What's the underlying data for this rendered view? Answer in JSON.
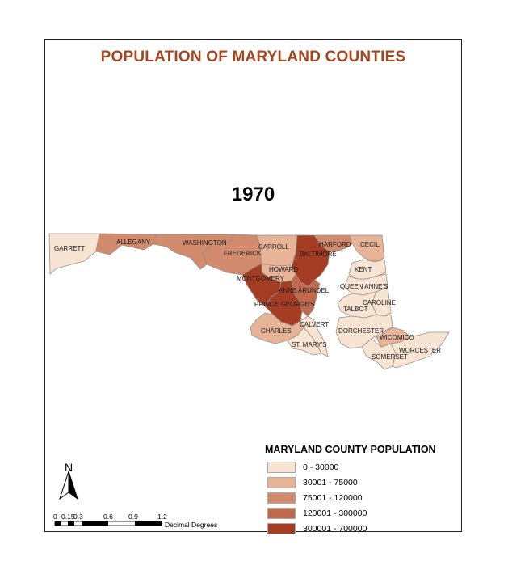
{
  "title": "POPULATION OF MARYLAND COUNTIES",
  "year": "1970",
  "colors": {
    "title": "#a8451f",
    "class_1": "#f7e4d2",
    "class_2": "#e8b498",
    "class_3": "#d38b6d",
    "class_4": "#c06a4d",
    "class_5": "#a53d24"
  },
  "counties": [
    {
      "name": "GARRETT",
      "class": 1
    },
    {
      "name": "ALLEGANY",
      "class": 3
    },
    {
      "name": "WASHINGTON",
      "class": 3
    },
    {
      "name": "FREDERICK",
      "class": 3
    },
    {
      "name": "CARROLL",
      "class": 2
    },
    {
      "name": "BALTIMORE",
      "class": 5
    },
    {
      "name": "HARFORD",
      "class": 3
    },
    {
      "name": "CECIL",
      "class": 2
    },
    {
      "name": "HOWARD",
      "class": 2
    },
    {
      "name": "MONTGOMERY",
      "class": 5
    },
    {
      "name": "ANNE ARUNDEL",
      "class": 4
    },
    {
      "name": "PRINCE GEORGE'S",
      "class": 5
    },
    {
      "name": "CALVERT",
      "class": 1
    },
    {
      "name": "CHARLES",
      "class": 2
    },
    {
      "name": "ST. MARY'S",
      "class": 1
    },
    {
      "name": "KENT",
      "class": 1
    },
    {
      "name": "QUEEN ANNE'S",
      "class": 1
    },
    {
      "name": "CAROLINE",
      "class": 1
    },
    {
      "name": "TALBOT",
      "class": 1
    },
    {
      "name": "DORCHESTER",
      "class": 1
    },
    {
      "name": "WICOMICO",
      "class": 2
    },
    {
      "name": "SOMERSET",
      "class": 1
    },
    {
      "name": "WORCESTER",
      "class": 1
    }
  ],
  "legend": {
    "title": "MARYLAND COUNTY POPULATION",
    "items": [
      {
        "label": "0 - 30000",
        "color": "#f7e4d2"
      },
      {
        "label": "30001 - 75000",
        "color": "#e8b498"
      },
      {
        "label": "75001 - 120000",
        "color": "#d38b6d"
      },
      {
        "label": "120001 - 300000",
        "color": "#c06a4d"
      },
      {
        "label": "300001 - 700000",
        "color": "#a53d24"
      }
    ]
  },
  "north_arrow": {
    "label": "N",
    "icon": "north-arrow-icon"
  },
  "scale_bar": {
    "ticks": [
      "0",
      "0.15",
      "0.3",
      "0.6",
      "0.9",
      "1.2"
    ],
    "units": "Decimal Degrees"
  }
}
